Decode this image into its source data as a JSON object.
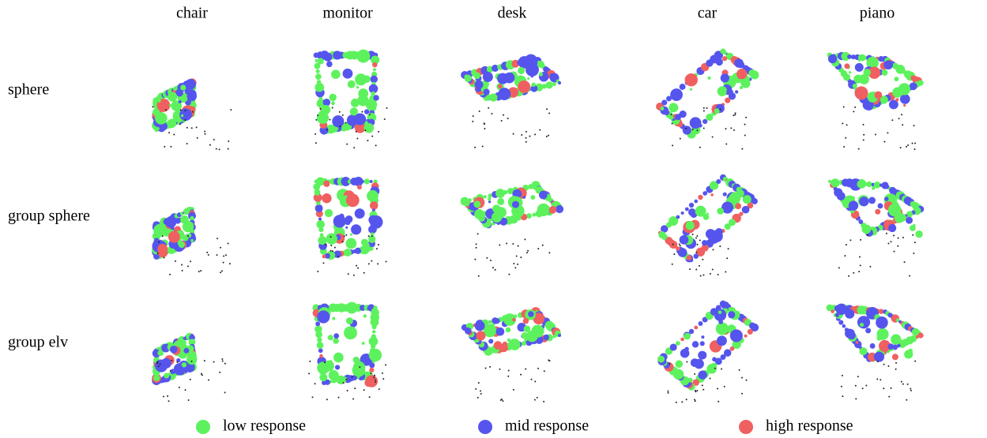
{
  "columns": [
    "chair",
    "monitor",
    "desk",
    "car",
    "piano"
  ],
  "rows": [
    "sphere",
    "group sphere",
    "group elv"
  ],
  "legend": [
    {
      "label": "low response",
      "color": "#5df25d"
    },
    {
      "label": "mid response",
      "color": "#5555ee"
    },
    {
      "label": "high response",
      "color": "#f06060"
    }
  ]
}
